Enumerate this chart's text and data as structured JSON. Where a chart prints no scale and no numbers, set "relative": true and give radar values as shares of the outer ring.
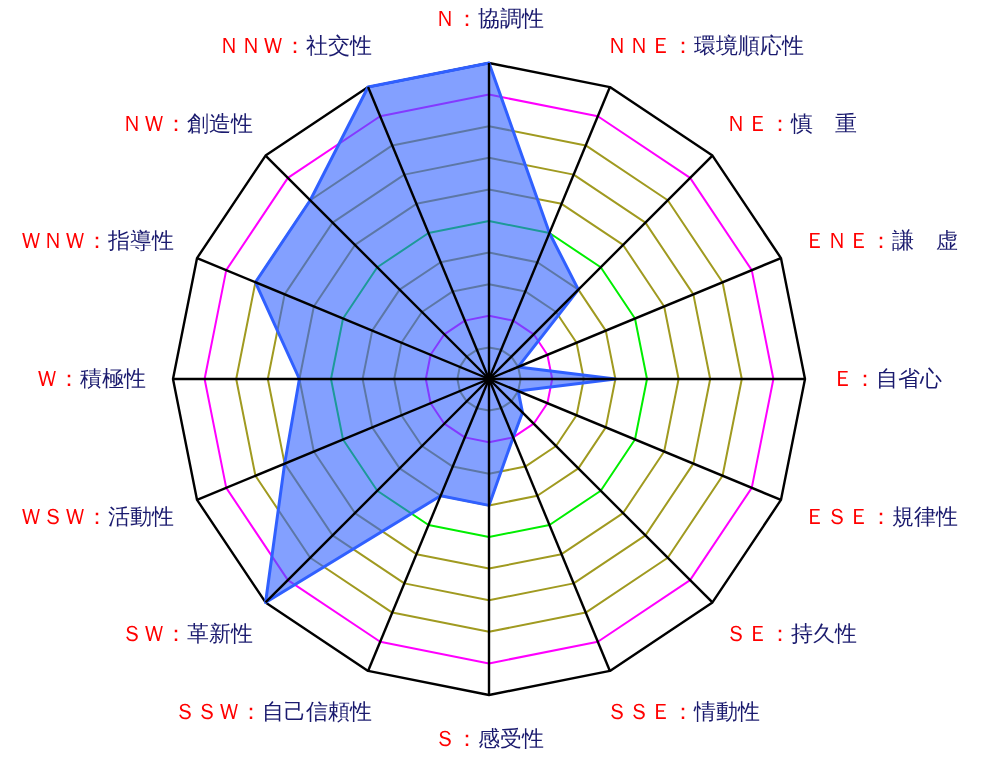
{
  "chart_data": {
    "type": "radar",
    "relative": true,
    "categories": [
      "Ｎ：協調性",
      "ＮＮＥ：環境順応性",
      "ＮＥ：慎　重",
      "ＥＮＥ：謙　虚",
      "Ｅ：自省心",
      "ＥＳＥ：規律性",
      "ＳＥ：持久性",
      "ＳＳＥ：情動性",
      "Ｓ：感受性",
      "ＳＳＷ：自己信頼性",
      "ＳＷ：革新性",
      "ＷＳＷ：活動性",
      "Ｗ：積極性",
      "ＷＮＷ：指導性",
      "ＮＷ：創造性",
      "ＮＮＷ：社交性"
    ],
    "series": [
      {
        "color": "#3060ff",
        "values": [
          1.0,
          0.5,
          0.4,
          0.1,
          0.4,
          0.1,
          0.15,
          0.2,
          0.4,
          0.4,
          1.0,
          0.7,
          0.6,
          0.8,
          0.8,
          1.0
        ]
      }
    ],
    "grid": true
  }
}
